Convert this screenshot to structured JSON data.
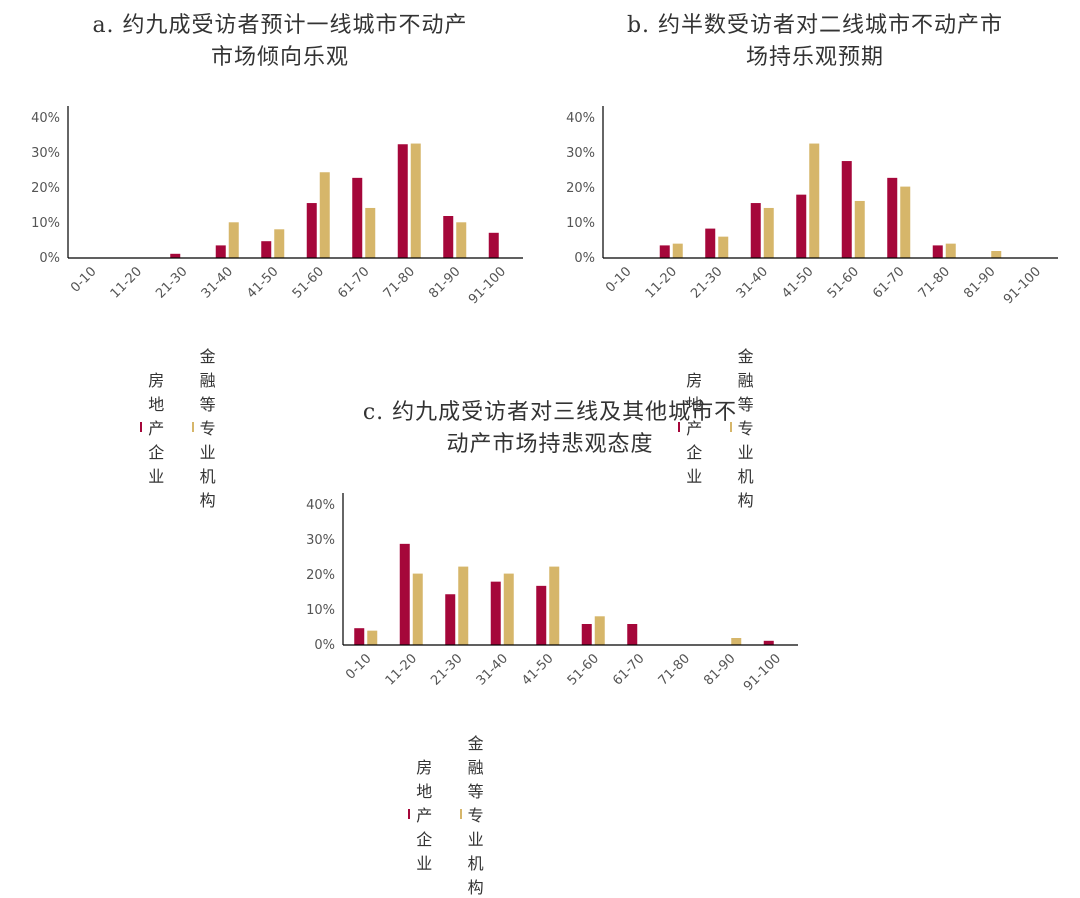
{
  "colors": {
    "real_estate": "#A5073A",
    "finance": "#D6B66A",
    "axis": "#000000"
  },
  "legend": {
    "real_estate": "房地产企业",
    "finance": "金融等专业机构"
  },
  "chart_data": [
    {
      "type": "bar",
      "title": "a. 约九成受访者预计一线城市不动产\n市场倾向乐观",
      "categories": [
        "0-10",
        "11-20",
        "21-30",
        "31-40",
        "41-50",
        "51-60",
        "61-70",
        "71-80",
        "81-90",
        "91-100"
      ],
      "series": [
        {
          "name": "房地产企业",
          "values": [
            0,
            0,
            1.2,
            3.6,
            4.8,
            15.7,
            22.9,
            32.5,
            12.0,
            7.2
          ]
        },
        {
          "name": "金融等专业机构",
          "values": [
            0,
            0,
            0,
            10.2,
            8.2,
            24.5,
            14.3,
            32.7,
            10.2,
            0
          ]
        }
      ],
      "yticks": [
        "0%",
        "10%",
        "20%",
        "30%",
        "40%"
      ],
      "ylim": [
        0,
        40
      ]
    },
    {
      "type": "bar",
      "title": "b. 约半数受访者对二线城市不动产市\n场持乐观预期",
      "categories": [
        "0-10",
        "11-20",
        "21-30",
        "31-40",
        "41-50",
        "51-60",
        "61-70",
        "71-80",
        "81-90",
        "91-100"
      ],
      "series": [
        {
          "name": "房地产企业",
          "values": [
            0,
            3.6,
            8.4,
            15.7,
            18.1,
            27.7,
            22.9,
            3.6,
            0,
            0
          ]
        },
        {
          "name": "金融等专业机构",
          "values": [
            0,
            4.1,
            6.1,
            14.3,
            32.7,
            16.3,
            20.4,
            4.1,
            2.0,
            0
          ]
        }
      ],
      "yticks": [
        "0%",
        "10%",
        "20%",
        "30%",
        "40%"
      ],
      "ylim": [
        0,
        40
      ]
    },
    {
      "type": "bar",
      "title": "c. 约九成受访者对三线及其他城市不\n动产市场持悲观态度",
      "categories": [
        "0-10",
        "11-20",
        "21-30",
        "31-40",
        "41-50",
        "51-60",
        "61-70",
        "71-80",
        "81-90",
        "91-100"
      ],
      "series": [
        {
          "name": "房地产企业",
          "values": [
            4.8,
            28.9,
            14.5,
            18.1,
            16.9,
            6.0,
            6.0,
            0,
            0,
            1.2
          ]
        },
        {
          "name": "金融等专业机构",
          "values": [
            4.1,
            20.4,
            22.4,
            20.4,
            22.4,
            8.2,
            0,
            0,
            2.0,
            0
          ]
        }
      ],
      "yticks": [
        "0%",
        "10%",
        "20%",
        "30%",
        "40%"
      ],
      "ylim": [
        0,
        40
      ]
    }
  ]
}
